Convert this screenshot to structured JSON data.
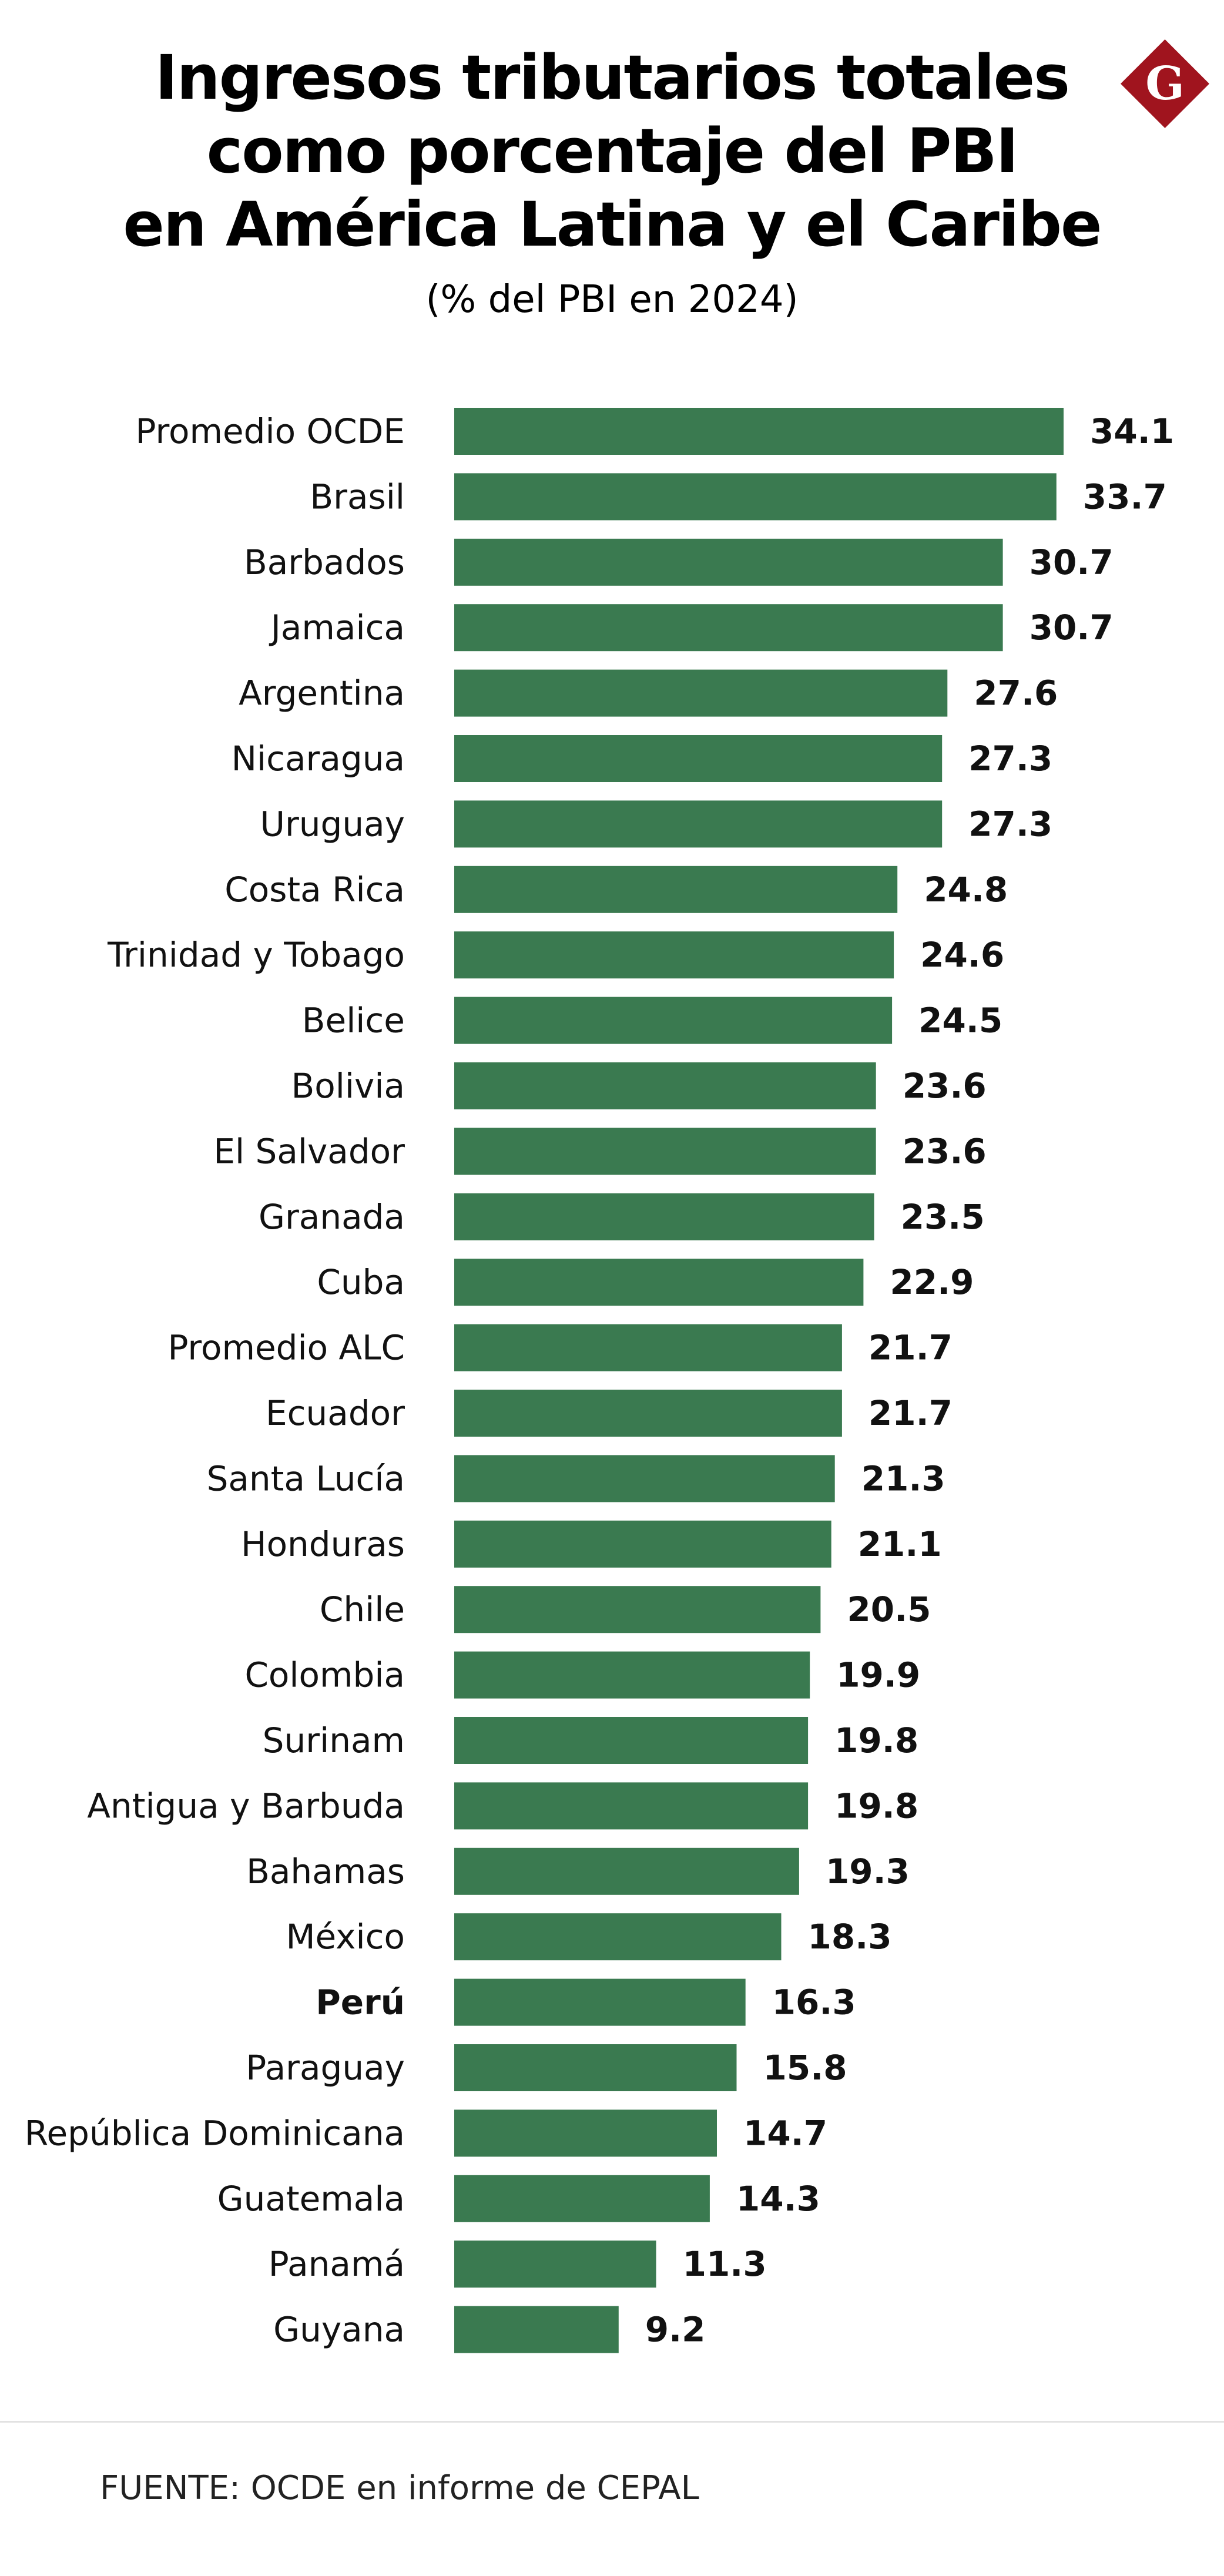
{
  "header": {
    "title": "Ingresos tributarios totales\ncomo porcentaje del PBI\nen América Latina y el Caribe",
    "subtitle": "(% del PBI en 2024)"
  },
  "logo": {
    "letter": "G",
    "icon": "gestion-diamond-logo",
    "color": "#a0141e"
  },
  "source": "FUENTE: OCDE en informe de CEPAL",
  "chart_data": {
    "type": "bar",
    "orientation": "horizontal",
    "title": "Ingresos tributarios totales como porcentaje del PBI en América Latina y el Caribe",
    "subtitle": "(% del PBI en 2024)",
    "xlabel": "",
    "ylabel": "",
    "xlim": [
      0,
      34.1
    ],
    "grid": false,
    "legend": "none",
    "bar_color": "#3a7a50",
    "highlight": "Perú",
    "categories": [
      "Promedio OCDE",
      "Brasil",
      "Barbados",
      "Jamaica",
      "Argentina",
      "Nicaragua",
      "Uruguay",
      "Costa Rica",
      "Trinidad y Tobago",
      "Belice",
      "Bolivia",
      "El Salvador",
      "Granada",
      "Cuba",
      "Promedio ALC",
      "Ecuador",
      "Santa Lucía",
      "Honduras",
      "Chile",
      "Colombia",
      "Surinam",
      "Antigua y Barbuda",
      "Bahamas",
      "México",
      "Perú",
      "Paraguay",
      "República Dominicana",
      "Guatemala",
      "Panamá",
      "Guyana"
    ],
    "values": [
      34.1,
      33.7,
      30.7,
      30.7,
      27.6,
      27.3,
      27.3,
      24.8,
      24.6,
      24.5,
      23.6,
      23.6,
      23.5,
      22.9,
      21.7,
      21.7,
      21.3,
      21.1,
      20.5,
      19.9,
      19.8,
      19.8,
      19.3,
      18.3,
      16.3,
      15.8,
      14.7,
      14.3,
      11.3,
      9.2
    ],
    "value_labels": [
      "34.1",
      "33.7",
      "30.7",
      "30.7",
      "27.6",
      "27.3",
      "27.3",
      "24.8",
      "24.6",
      "24.5",
      "23.6",
      "23.6",
      "23.5",
      "22.9",
      "21.7",
      "21.7",
      "21.3",
      "21.1",
      "20.5",
      "19.9",
      "19.8",
      "19.8",
      "19.3",
      "18.3",
      "16.3",
      "15.8",
      "14.7",
      "14.3",
      "11.3",
      "9.2"
    ]
  }
}
